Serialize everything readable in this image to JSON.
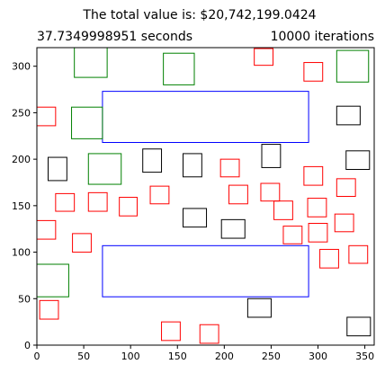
{
  "chart_data": {
    "type": "rectangles",
    "title": "The total value is: $20,742,199.0424",
    "subtitle_left": "37.7349998951 seconds",
    "subtitle_right": "10000 iterations",
    "xlim": [
      0,
      360
    ],
    "ylim": [
      0,
      320
    ],
    "xticks": [
      0,
      50,
      100,
      150,
      200,
      250,
      300,
      350
    ],
    "yticks": [
      0,
      50,
      100,
      150,
      200,
      250,
      300
    ],
    "grid": false,
    "colors": {
      "red": "#ff0000",
      "black": "#000000",
      "green": "#008000",
      "blue": "#0000ff"
    },
    "rects": [
      {
        "color": "blue",
        "x": 70,
        "y": 218,
        "w": 220,
        "h": 55
      },
      {
        "color": "blue",
        "x": 70,
        "y": 52,
        "w": 220,
        "h": 55
      },
      {
        "color": "green",
        "x": 40,
        "y": 288,
        "w": 35,
        "h": 33
      },
      {
        "color": "green",
        "x": 135,
        "y": 280,
        "w": 33,
        "h": 34
      },
      {
        "color": "green",
        "x": 320,
        "y": 283,
        "w": 34,
        "h": 34
      },
      {
        "color": "green",
        "x": 37,
        "y": 222,
        "w": 33,
        "h": 34
      },
      {
        "color": "green",
        "x": 55,
        "y": 173,
        "w": 35,
        "h": 33
      },
      {
        "color": "green",
        "x": 0,
        "y": 52,
        "w": 34,
        "h": 35
      },
      {
        "color": "black",
        "x": 320,
        "y": 237,
        "w": 25,
        "h": 20
      },
      {
        "color": "black",
        "x": 12,
        "y": 177,
        "w": 20,
        "h": 25
      },
      {
        "color": "black",
        "x": 113,
        "y": 186,
        "w": 20,
        "h": 25
      },
      {
        "color": "black",
        "x": 156,
        "y": 181,
        "w": 20,
        "h": 25
      },
      {
        "color": "black",
        "x": 240,
        "y": 191,
        "w": 20,
        "h": 25
      },
      {
        "color": "black",
        "x": 330,
        "y": 189,
        "w": 25,
        "h": 20
      },
      {
        "color": "black",
        "x": 156,
        "y": 127,
        "w": 25,
        "h": 20
      },
      {
        "color": "black",
        "x": 197,
        "y": 115,
        "w": 25,
        "h": 20
      },
      {
        "color": "black",
        "x": 225,
        "y": 30,
        "w": 25,
        "h": 20
      },
      {
        "color": "black",
        "x": 331,
        "y": 10,
        "w": 25,
        "h": 20
      },
      {
        "color": "red",
        "x": 232,
        "y": 301,
        "w": 20,
        "h": 18
      },
      {
        "color": "red",
        "x": 285,
        "y": 284,
        "w": 20,
        "h": 20
      },
      {
        "color": "red",
        "x": 0,
        "y": 236,
        "w": 20,
        "h": 20
      },
      {
        "color": "red",
        "x": 196,
        "y": 181,
        "w": 20,
        "h": 19
      },
      {
        "color": "red",
        "x": 285,
        "y": 172,
        "w": 20,
        "h": 20
      },
      {
        "color": "red",
        "x": 320,
        "y": 160,
        "w": 20,
        "h": 19
      },
      {
        "color": "red",
        "x": 20,
        "y": 144,
        "w": 20,
        "h": 19
      },
      {
        "color": "red",
        "x": 55,
        "y": 144,
        "w": 20,
        "h": 20
      },
      {
        "color": "red",
        "x": 88,
        "y": 139,
        "w": 19,
        "h": 20
      },
      {
        "color": "red",
        "x": 121,
        "y": 152,
        "w": 20,
        "h": 19
      },
      {
        "color": "red",
        "x": 205,
        "y": 152,
        "w": 20,
        "h": 20
      },
      {
        "color": "red",
        "x": 239,
        "y": 155,
        "w": 20,
        "h": 19
      },
      {
        "color": "red",
        "x": 253,
        "y": 135,
        "w": 20,
        "h": 20
      },
      {
        "color": "red",
        "x": 289,
        "y": 138,
        "w": 20,
        "h": 20
      },
      {
        "color": "red",
        "x": 318,
        "y": 122,
        "w": 20,
        "h": 19
      },
      {
        "color": "red",
        "x": 0,
        "y": 114,
        "w": 20,
        "h": 20
      },
      {
        "color": "red",
        "x": 38,
        "y": 100,
        "w": 20,
        "h": 20
      },
      {
        "color": "red",
        "x": 263,
        "y": 109,
        "w": 20,
        "h": 19
      },
      {
        "color": "red",
        "x": 290,
        "y": 111,
        "w": 20,
        "h": 20
      },
      {
        "color": "red",
        "x": 333,
        "y": 88,
        "w": 20,
        "h": 19
      },
      {
        "color": "red",
        "x": 302,
        "y": 83,
        "w": 20,
        "h": 20
      },
      {
        "color": "red",
        "x": 3,
        "y": 28,
        "w": 20,
        "h": 20
      },
      {
        "color": "red",
        "x": 133,
        "y": 5,
        "w": 20,
        "h": 20
      },
      {
        "color": "red",
        "x": 174,
        "y": 2,
        "w": 20,
        "h": 20
      }
    ]
  }
}
